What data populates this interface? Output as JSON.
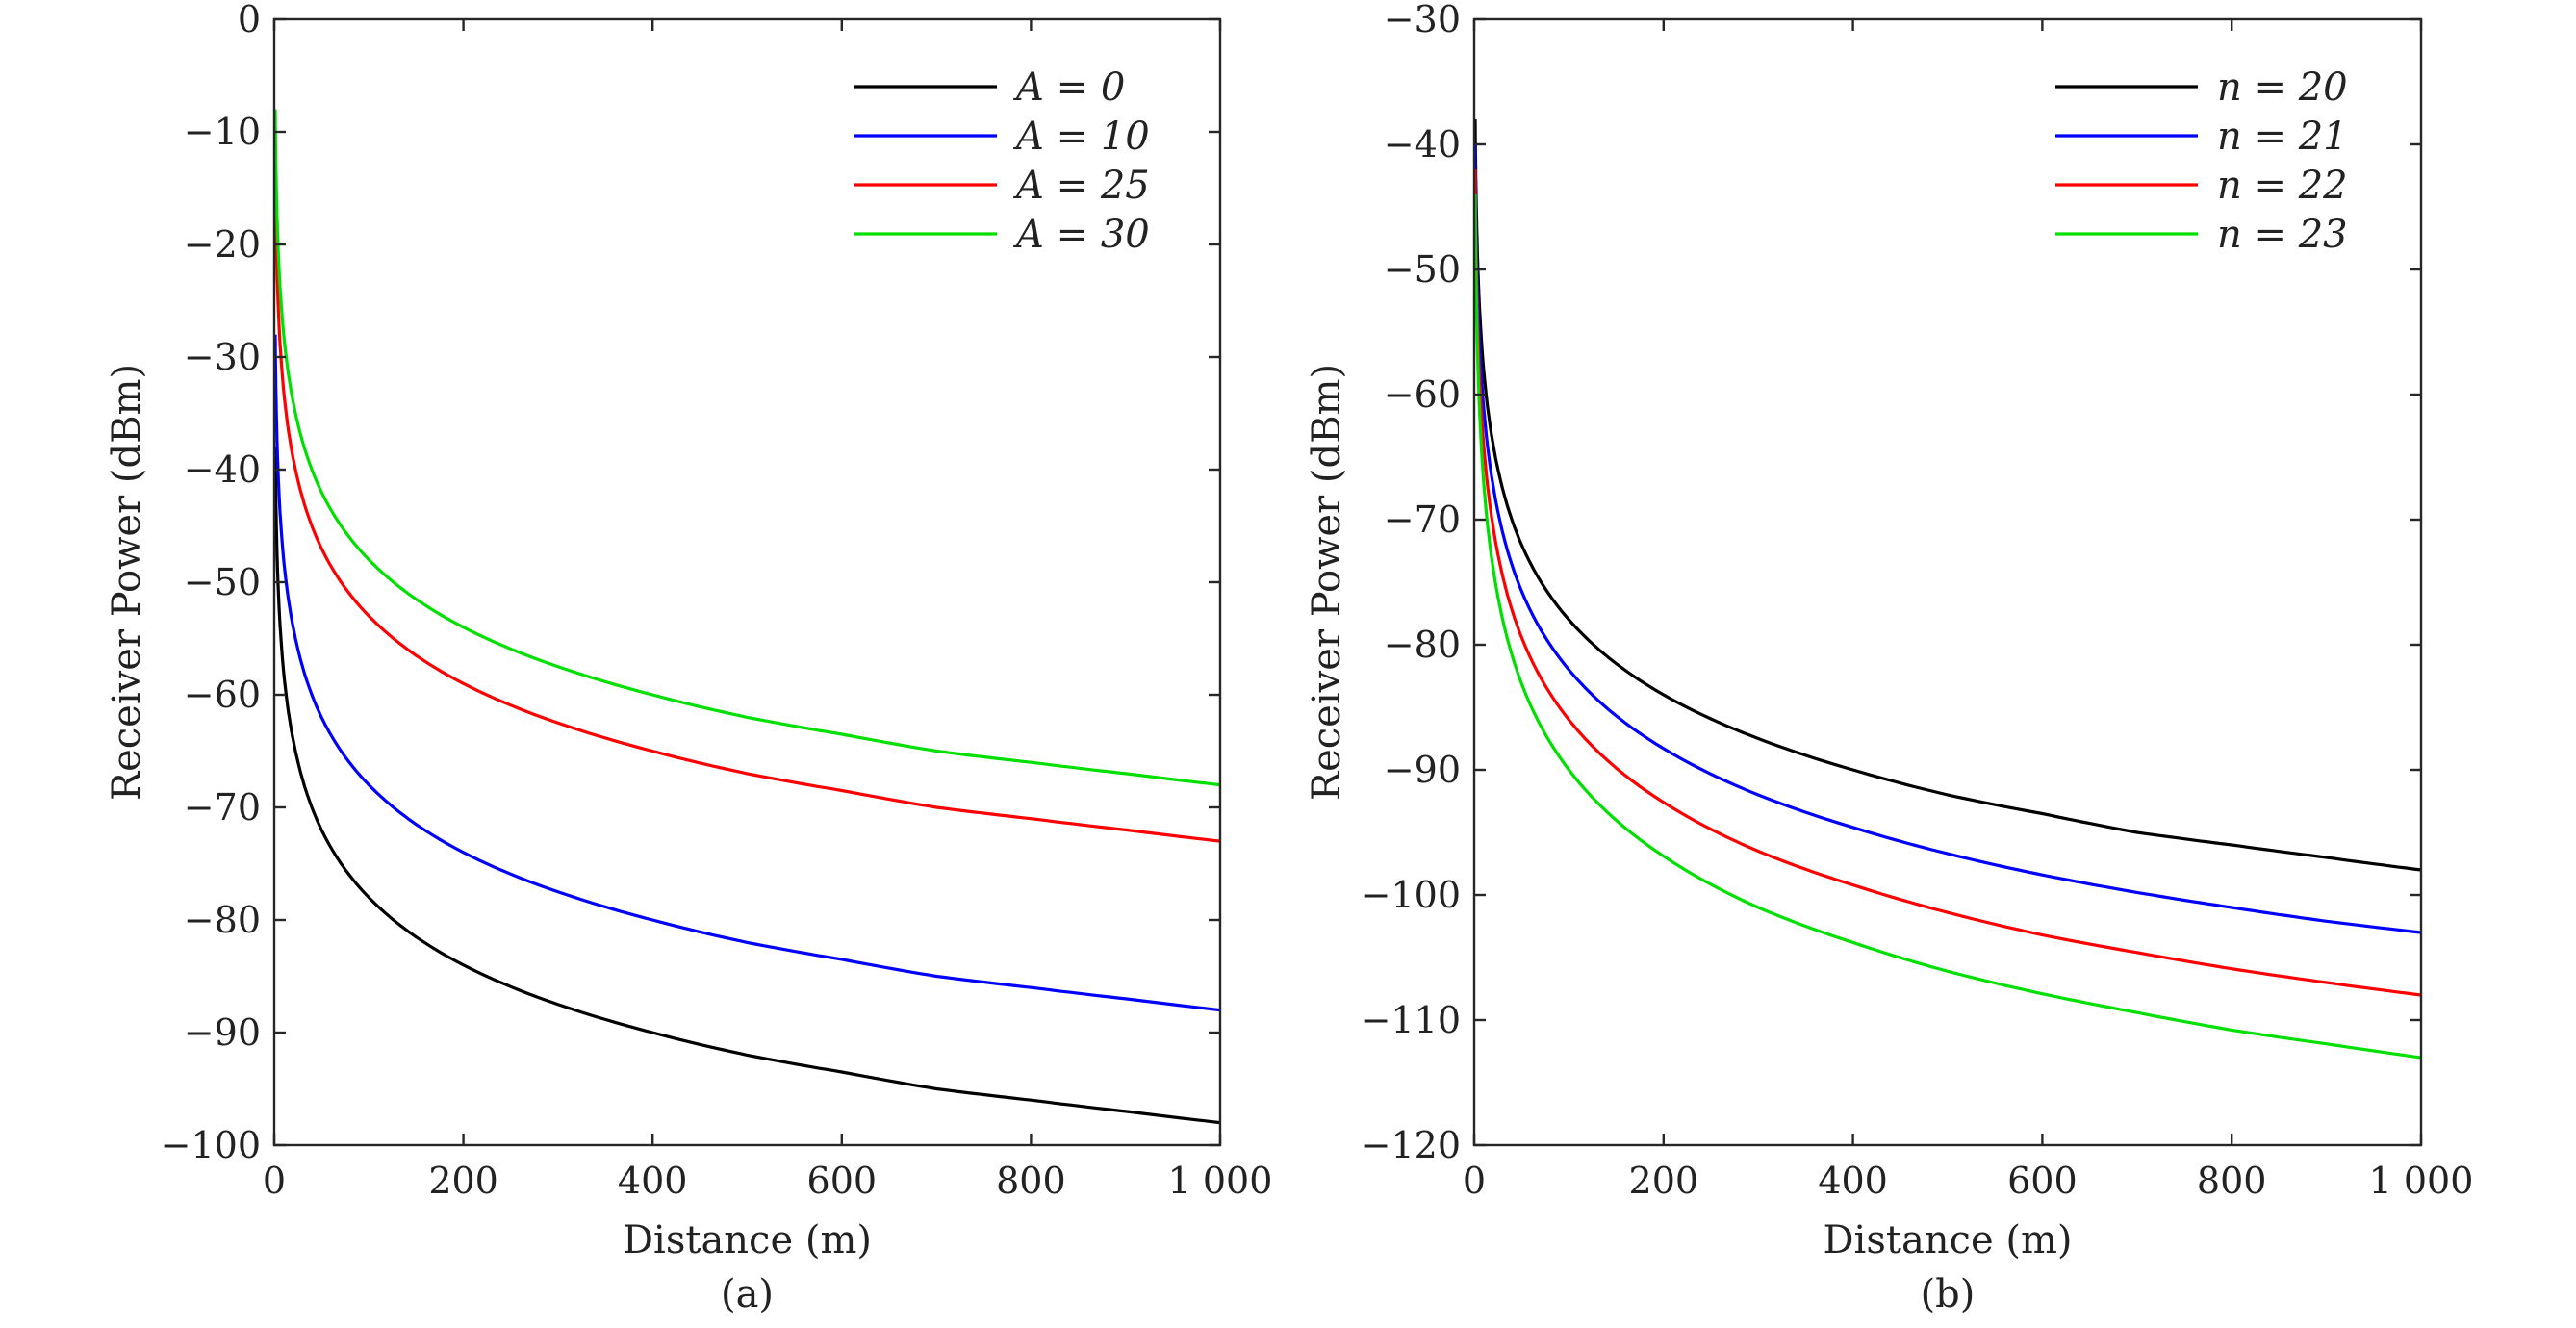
{
  "chart_data": [
    {
      "type": "line",
      "panel_label": "(a)",
      "xlabel": "Distance (m)",
      "ylabel": "Receiver Power (dBm)",
      "xlim": [
        0,
        1000
      ],
      "ylim": [
        -100,
        0
      ],
      "xticks": [
        0,
        200,
        400,
        600,
        800,
        1000
      ],
      "xtick_labels": [
        "0",
        "200",
        "400",
        "600",
        "800",
        "1 000"
      ],
      "yticks": [
        0,
        -10,
        -20,
        -30,
        -40,
        -50,
        -60,
        -70,
        -80,
        -90,
        -100
      ],
      "ytick_labels": [
        "0",
        "−10",
        "−20",
        "−30",
        "−40",
        "−50",
        "−60",
        "−70",
        "−80",
        "−90",
        "−100"
      ],
      "grid": false,
      "legend_position": "top-right",
      "x": [
        1,
        2,
        5,
        10,
        20,
        50,
        100,
        200,
        300,
        400,
        500,
        600,
        700,
        800,
        900,
        1000
      ],
      "series": [
        {
          "name": "A = 0",
          "legend_var": "A",
          "legend_val": "0",
          "color": "#000000",
          "values": [
            -38,
            -44,
            -52,
            -58,
            -64,
            -72,
            -78,
            -84,
            -87.5,
            -90,
            -92,
            -93.5,
            -95,
            -96,
            -97,
            -98
          ]
        },
        {
          "name": "A = 10",
          "legend_var": "A",
          "legend_val": "10",
          "color": "#0000ff",
          "values": [
            -28,
            -34,
            -42,
            -48,
            -54,
            -62,
            -68,
            -74,
            -77.5,
            -80,
            -82,
            -83.5,
            -85,
            -86,
            -87,
            -88
          ]
        },
        {
          "name": "A = 25",
          "legend_var": "A",
          "legend_val": "25",
          "color": "#ff0000",
          "values": [
            -13,
            -19,
            -27,
            -33,
            -39,
            -47,
            -53,
            -59,
            -62.5,
            -65,
            -67,
            -68.5,
            -70,
            -71,
            -72,
            -73
          ]
        },
        {
          "name": "A = 30",
          "legend_var": "A",
          "legend_val": "30",
          "color": "#00e000",
          "values": [
            -8,
            -14,
            -22,
            -28,
            -34,
            -42,
            -48,
            -54,
            -57.5,
            -60,
            -62,
            -63.5,
            -65,
            -66,
            -67,
            -68
          ]
        }
      ]
    },
    {
      "type": "line",
      "panel_label": "(b)",
      "xlabel": "Distance (m)",
      "ylabel": "Receiver Power (dBm)",
      "xlim": [
        0,
        1000
      ],
      "ylim": [
        -120,
        -30
      ],
      "xticks": [
        0,
        200,
        400,
        600,
        800,
        1000
      ],
      "xtick_labels": [
        "0",
        "200",
        "400",
        "600",
        "800",
        "1 000"
      ],
      "yticks": [
        -30,
        -40,
        -50,
        -60,
        -70,
        -80,
        -90,
        -100,
        -110,
        -120
      ],
      "ytick_labels": [
        "−30",
        "−40",
        "−50",
        "−60",
        "−70",
        "−80",
        "−90",
        "−100",
        "−110",
        "−120"
      ],
      "grid": false,
      "legend_position": "top-right",
      "x": [
        1,
        2,
        5,
        10,
        20,
        50,
        100,
        200,
        300,
        400,
        500,
        600,
        700,
        800,
        900,
        1000
      ],
      "series": [
        {
          "name": "n = 20",
          "legend_var": "n",
          "legend_val": "20",
          "color": "#000000",
          "values": [
            -38,
            -44,
            -52,
            -58,
            -64,
            -72,
            -78,
            -84,
            -87.5,
            -90,
            -92,
            -93.5,
            -95,
            -96,
            -97,
            -98
          ]
        },
        {
          "name": "n = 21",
          "legend_var": "n",
          "legend_val": "21",
          "color": "#0000ff",
          "values": [
            -40,
            -46.3,
            -54.7,
            -61,
            -67.3,
            -75.7,
            -82,
            -88.3,
            -92,
            -94.6,
            -96.7,
            -98.4,
            -99.8,
            -101,
            -102.1,
            -103
          ]
        },
        {
          "name": "n = 22",
          "legend_var": "n",
          "legend_val": "22",
          "color": "#ff0000",
          "values": [
            -42,
            -48.6,
            -57.4,
            -64,
            -70.6,
            -79.4,
            -86,
            -92.6,
            -96.5,
            -99.2,
            -101.4,
            -103.2,
            -104.6,
            -105.9,
            -107,
            -108
          ]
        },
        {
          "name": "n = 23",
          "legend_var": "n",
          "legend_val": "23",
          "color": "#00e000",
          "values": [
            -44,
            -50.9,
            -60.1,
            -67,
            -73.9,
            -83.1,
            -90,
            -96.9,
            -101,
            -103.8,
            -106.1,
            -107.9,
            -109.4,
            -110.8,
            -111.9,
            -113
          ]
        }
      ]
    }
  ]
}
